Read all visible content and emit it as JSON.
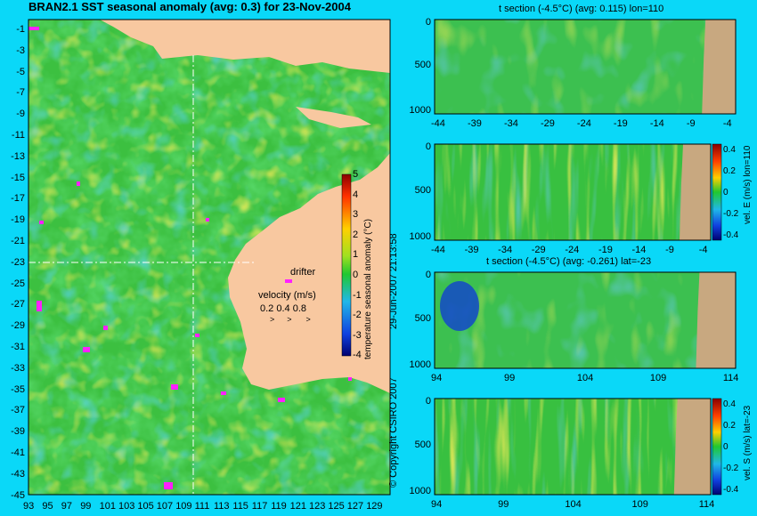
{
  "title": "BRAN2.1 SST seasonal anomaly (avg: 0.3) for 23-Nov-2004",
  "copyright": "© Copyright CSIRO 2007",
  "timestamp": "29-Jun-2007 21:13:58",
  "colors": {
    "background": "#0ad8f8",
    "land": "#f8c8a0",
    "land_section": "#c8a880",
    "ocean": "#46c832",
    "warm": "#f0d020",
    "cool": "#20a8e0",
    "drifter": "#ff20ff"
  },
  "map": {
    "ylabels": [
      "-1",
      "-3",
      "-5",
      "-7",
      "-9",
      "-11",
      "-13",
      "-15",
      "-17",
      "-19",
      "-21",
      "-23",
      "-25",
      "-27",
      "-29",
      "-31",
      "-33",
      "-35",
      "-37",
      "-39",
      "-41",
      "-43",
      "-45"
    ],
    "xlabels": [
      "93",
      "95",
      "97",
      "99",
      "101",
      "103",
      "105",
      "107",
      "109",
      "111",
      "113",
      "115",
      "117",
      "119",
      "121",
      "123",
      "125",
      "127",
      "129"
    ],
    "colorbar_label": "temperature seasonal anomaly (°C)",
    "colorbar_ticks": [
      "5",
      "4",
      "3",
      "2",
      "1",
      "0",
      "-1",
      "-2",
      "-3",
      "-4"
    ],
    "legend": {
      "drifter": "drifter",
      "velocity_title": "velocity (m/s)",
      "velocity_values": "0.2  0.4  0.8"
    }
  },
  "chart_data": [
    {
      "type": "heatmap",
      "title": "BRAN2.1 SST seasonal anomaly (avg: 0.3) for 23-Nov-2004",
      "x_ticks": [
        93,
        95,
        97,
        99,
        101,
        103,
        105,
        107,
        109,
        111,
        113,
        115,
        117,
        119,
        121,
        123,
        125,
        127,
        129
      ],
      "y_ticks": [
        -1,
        -3,
        -5,
        -7,
        -9,
        -11,
        -13,
        -15,
        -17,
        -19,
        -21,
        -23,
        -25,
        -27,
        -29,
        -31,
        -33,
        -35,
        -37,
        -39,
        -41,
        -43,
        -45
      ],
      "colorbar": {
        "label": "temperature seasonal anomaly (°C)",
        "range": [
          -4,
          5
        ]
      },
      "section_lines": {
        "lon": 110,
        "lat": -23
      }
    },
    {
      "type": "heatmap",
      "title": "t section (-4.5°C) (avg: 0.115) lon=110",
      "x_ticks": [
        -44,
        -39,
        -34,
        -29,
        -24,
        -19,
        -14,
        -9,
        -4
      ],
      "y_ticks": [
        0,
        500,
        1000
      ]
    },
    {
      "type": "heatmap",
      "title": "",
      "x_ticks": [
        -44,
        -39,
        -34,
        -29,
        -24,
        -19,
        -14,
        -9,
        -4
      ],
      "y_ticks": [
        0,
        500,
        1000
      ],
      "colorbar": {
        "label": "vel. E (m/s) lon=110",
        "ticks": [
          0.4,
          0.2,
          0,
          -0.2,
          -0.4
        ]
      }
    },
    {
      "type": "heatmap",
      "title": "t section (-4.5°C) (avg: -0.261) lat=-23",
      "x_ticks": [
        94,
        99,
        104,
        109,
        114
      ],
      "y_ticks": [
        0,
        500,
        1000
      ]
    },
    {
      "type": "heatmap",
      "title": "",
      "x_ticks": [
        94,
        99,
        104,
        109,
        114
      ],
      "y_ticks": [
        0,
        500,
        1000
      ],
      "colorbar": {
        "label": "vel. S (m/s) lat=-23",
        "ticks": [
          0.4,
          0.2,
          0,
          -0.2,
          -0.4
        ]
      }
    }
  ],
  "panels": {
    "p1_title": "t section (-4.5°C) (avg: 0.115) lon=110",
    "p3_title": "t section (-4.5°C) (avg: -0.261) lat=-23",
    "p2_cbar_label": "vel. E (m/s) lon=110",
    "p4_cbar_label": "vel. S (m/s) lat=-23",
    "lat_ticks": [
      "-44",
      "-39",
      "-34",
      "-29",
      "-24",
      "-19",
      "-14",
      "-9",
      "-4"
    ],
    "lon_ticks": [
      "94",
      "99",
      "104",
      "109",
      "114"
    ],
    "depth_ticks": [
      "0",
      "500",
      "1000"
    ],
    "vel_ticks": [
      "0.4",
      "0.2",
      "0",
      "-0.2",
      "-0.4"
    ]
  }
}
